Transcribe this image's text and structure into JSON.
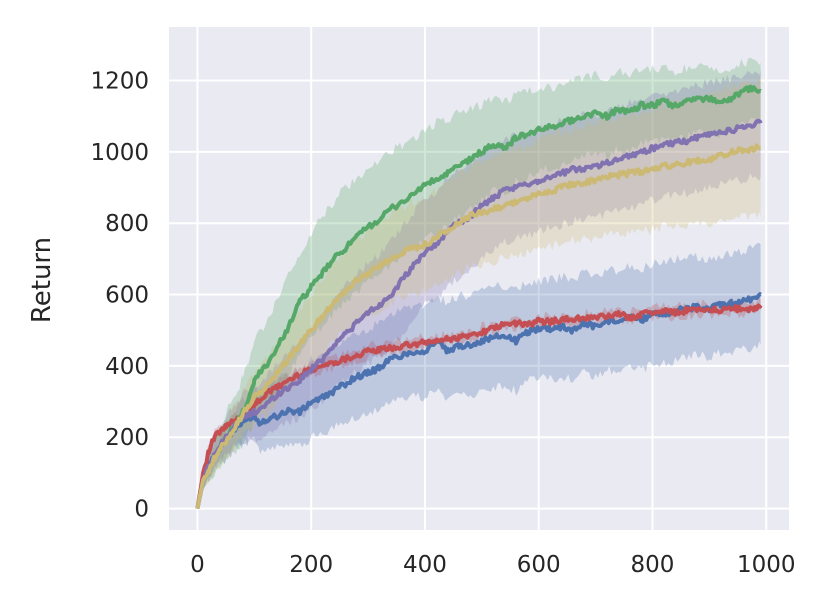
{
  "chart_data": {
    "type": "line",
    "title": "",
    "xlabel": "",
    "ylabel": "Return",
    "xlim": [
      -50,
      1040
    ],
    "ylim": [
      -60,
      1350
    ],
    "xticks": [
      0,
      200,
      400,
      600,
      800,
      1000
    ],
    "yticks": [
      0,
      200,
      400,
      600,
      800,
      1000,
      1200
    ],
    "grid": true,
    "background": "#eaeaf2",
    "series": [
      {
        "color": "#4c72b0",
        "x": [
          0,
          10,
          20,
          30,
          40,
          50,
          60,
          70,
          80,
          90,
          100,
          110,
          120,
          140,
          160,
          180,
          200,
          220,
          240,
          260,
          280,
          300,
          320,
          340,
          360,
          380,
          400,
          420,
          440,
          460,
          480,
          500,
          520,
          540,
          560,
          580,
          600,
          620,
          640,
          660,
          680,
          700,
          720,
          740,
          760,
          780,
          800,
          820,
          840,
          860,
          880,
          900,
          920,
          940,
          960,
          980,
          990
        ],
        "y": [
          0,
          80,
          120,
          150,
          170,
          190,
          210,
          230,
          240,
          255,
          260,
          240,
          250,
          260,
          275,
          270,
          300,
          310,
          330,
          350,
          370,
          380,
          395,
          420,
          430,
          440,
          440,
          470,
          440,
          455,
          460,
          470,
          480,
          485,
          470,
          495,
          505,
          505,
          510,
          500,
          520,
          510,
          525,
          530,
          540,
          525,
          550,
          545,
          555,
          560,
          565,
          560,
          570,
          575,
          580,
          590,
          600
        ],
        "upper": [
          0,
          110,
          160,
          190,
          215,
          240,
          265,
          285,
          300,
          320,
          330,
          330,
          345,
          360,
          375,
          385,
          420,
          430,
          450,
          470,
          490,
          500,
          520,
          540,
          555,
          565,
          570,
          590,
          580,
          595,
          600,
          610,
          620,
          625,
          620,
          630,
          640,
          640,
          650,
          640,
          660,
          655,
          665,
          670,
          680,
          670,
          690,
          690,
          700,
          700,
          705,
          700,
          710,
          715,
          720,
          730,
          740
        ],
        "lower": [
          0,
          50,
          85,
          110,
          125,
          140,
          155,
          170,
          180,
          190,
          190,
          160,
          165,
          170,
          185,
          175,
          200,
          210,
          225,
          240,
          260,
          270,
          280,
          300,
          310,
          315,
          310,
          340,
          300,
          315,
          320,
          330,
          340,
          345,
          330,
          355,
          365,
          365,
          370,
          360,
          380,
          370,
          385,
          390,
          400,
          385,
          410,
          405,
          415,
          425,
          430,
          425,
          435,
          440,
          445,
          455,
          460
        ]
      },
      {
        "color": "#c44e52",
        "x": [
          0,
          10,
          20,
          30,
          40,
          50,
          60,
          70,
          80,
          90,
          100,
          120,
          140,
          160,
          180,
          200,
          220,
          240,
          260,
          280,
          300,
          320,
          340,
          360,
          380,
          400,
          420,
          440,
          460,
          480,
          500,
          520,
          540,
          560,
          580,
          600,
          620,
          640,
          660,
          680,
          700,
          720,
          740,
          760,
          780,
          800,
          820,
          840,
          860,
          880,
          900,
          920,
          940,
          960,
          980,
          990
        ],
        "y": [
          0,
          100,
          160,
          200,
          215,
          230,
          240,
          250,
          260,
          275,
          290,
          320,
          340,
          360,
          375,
          390,
          400,
          410,
          420,
          430,
          440,
          445,
          450,
          455,
          460,
          465,
          470,
          475,
          480,
          485,
          495,
          505,
          515,
          520,
          515,
          525,
          525,
          530,
          530,
          535,
          535,
          540,
          545,
          535,
          545,
          550,
          555,
          550,
          555,
          560,
          560,
          555,
          565,
          555,
          560,
          570
        ],
        "upper": [
          0,
          110,
          175,
          215,
          230,
          245,
          255,
          265,
          275,
          290,
          305,
          335,
          355,
          375,
          390,
          405,
          415,
          425,
          435,
          445,
          455,
          460,
          465,
          470,
          475,
          480,
          485,
          490,
          495,
          500,
          510,
          520,
          530,
          535,
          530,
          540,
          540,
          545,
          545,
          550,
          550,
          555,
          560,
          550,
          560,
          565,
          570,
          565,
          570,
          575,
          575,
          570,
          580,
          570,
          575,
          585
        ],
        "lower": [
          0,
          90,
          145,
          185,
          200,
          215,
          225,
          235,
          245,
          260,
          275,
          305,
          325,
          345,
          360,
          375,
          385,
          395,
          405,
          415,
          425,
          430,
          435,
          440,
          445,
          450,
          455,
          460,
          465,
          470,
          480,
          490,
          500,
          505,
          500,
          510,
          510,
          515,
          515,
          520,
          520,
          525,
          530,
          520,
          530,
          535,
          540,
          535,
          540,
          545,
          545,
          540,
          550,
          540,
          545,
          555
        ]
      },
      {
        "color": "#55a868",
        "x": [
          0,
          10,
          20,
          30,
          40,
          50,
          60,
          70,
          80,
          90,
          100,
          120,
          140,
          160,
          180,
          200,
          220,
          240,
          260,
          280,
          300,
          320,
          340,
          360,
          380,
          400,
          420,
          440,
          460,
          480,
          500,
          520,
          540,
          560,
          580,
          600,
          620,
          640,
          660,
          680,
          700,
          720,
          740,
          760,
          780,
          800,
          820,
          840,
          860,
          880,
          900,
          920,
          940,
          960,
          980,
          990
        ],
        "y": [
          0,
          80,
          110,
          140,
          170,
          200,
          220,
          240,
          270,
          300,
          360,
          400,
          450,
          510,
          580,
          620,
          660,
          700,
          730,
          760,
          790,
          810,
          840,
          860,
          880,
          910,
          920,
          940,
          960,
          980,
          1000,
          1020,
          1010,
          1040,
          1050,
          1060,
          1070,
          1080,
          1090,
          1100,
          1110,
          1100,
          1120,
          1110,
          1130,
          1130,
          1140,
          1130,
          1140,
          1150,
          1150,
          1140,
          1150,
          1170,
          1180,
          1170
        ],
        "upper": [
          0,
          110,
          150,
          190,
          230,
          270,
          300,
          330,
          370,
          410,
          470,
          520,
          580,
          650,
          720,
          770,
          820,
          860,
          900,
          920,
          950,
          970,
          1000,
          1020,
          1040,
          1060,
          1080,
          1090,
          1110,
          1120,
          1130,
          1150,
          1140,
          1160,
          1170,
          1170,
          1180,
          1190,
          1200,
          1210,
          1215,
          1205,
          1225,
          1215,
          1230,
          1230,
          1235,
          1225,
          1235,
          1240,
          1240,
          1230,
          1240,
          1250,
          1255,
          1250
        ],
        "lower": [
          0,
          55,
          75,
          95,
          115,
          135,
          150,
          165,
          185,
          210,
          255,
          285,
          320,
          370,
          435,
          475,
          510,
          550,
          575,
          605,
          635,
          655,
          685,
          705,
          725,
          760,
          770,
          795,
          815,
          840,
          865,
          890,
          880,
          915,
          925,
          945,
          955,
          965,
          975,
          985,
          1000,
          990,
          1010,
          1000,
          1025,
          1025,
          1040,
          1030,
          1040,
          1055,
          1055,
          1045,
          1055,
          1080,
          1095,
          1085
        ]
      },
      {
        "color": "#8172b2",
        "x": [
          0,
          10,
          20,
          30,
          40,
          50,
          60,
          70,
          80,
          90,
          100,
          120,
          140,
          160,
          180,
          200,
          220,
          240,
          260,
          280,
          300,
          320,
          340,
          360,
          380,
          400,
          420,
          440,
          460,
          480,
          500,
          520,
          540,
          560,
          580,
          600,
          620,
          640,
          660,
          680,
          700,
          720,
          740,
          760,
          780,
          800,
          820,
          840,
          860,
          880,
          900,
          920,
          940,
          960,
          980,
          990
        ],
        "y": [
          0,
          80,
          120,
          150,
          175,
          200,
          220,
          240,
          255,
          265,
          270,
          290,
          320,
          340,
          360,
          390,
          420,
          460,
          490,
          520,
          550,
          570,
          600,
          640,
          680,
          720,
          740,
          780,
          800,
          820,
          850,
          870,
          890,
          900,
          910,
          920,
          930,
          940,
          950,
          955,
          960,
          970,
          980,
          990,
          1000,
          1010,
          1020,
          1025,
          1030,
          1040,
          1050,
          1055,
          1060,
          1070,
          1080,
          1080
        ],
        "upper": [
          0,
          105,
          155,
          190,
          220,
          250,
          275,
          300,
          320,
          335,
          345,
          370,
          405,
          435,
          465,
          500,
          540,
          585,
          620,
          655,
          690,
          715,
          750,
          790,
          830,
          870,
          890,
          930,
          950,
          970,
          1000,
          1015,
          1035,
          1045,
          1055,
          1065,
          1075,
          1085,
          1095,
          1100,
          1105,
          1115,
          1125,
          1135,
          1145,
          1155,
          1165,
          1170,
          1175,
          1185,
          1195,
          1200,
          1205,
          1215,
          1225,
          1230
        ],
        "lower": [
          0,
          55,
          85,
          110,
          130,
          150,
          165,
          180,
          190,
          195,
          195,
          210,
          235,
          245,
          255,
          280,
          300,
          335,
          360,
          385,
          410,
          425,
          450,
          490,
          530,
          570,
          590,
          630,
          650,
          670,
          700,
          725,
          745,
          755,
          765,
          775,
          785,
          795,
          805,
          810,
          815,
          825,
          835,
          845,
          855,
          865,
          875,
          880,
          885,
          895,
          905,
          910,
          915,
          925,
          935,
          930
        ]
      },
      {
        "color": "#ccb974",
        "x": [
          0,
          10,
          20,
          30,
          40,
          50,
          60,
          70,
          80,
          90,
          100,
          120,
          140,
          160,
          180,
          200,
          220,
          240,
          260,
          280,
          300,
          320,
          340,
          360,
          380,
          400,
          420,
          440,
          460,
          480,
          500,
          520,
          540,
          560,
          580,
          600,
          620,
          640,
          660,
          680,
          700,
          720,
          740,
          760,
          780,
          800,
          820,
          840,
          860,
          880,
          900,
          920,
          940,
          960,
          980,
          990
        ],
        "y": [
          0,
          80,
          110,
          140,
          165,
          190,
          215,
          240,
          265,
          290,
          310,
          340,
          380,
          420,
          460,
          500,
          540,
          580,
          610,
          640,
          660,
          680,
          700,
          720,
          730,
          740,
          760,
          780,
          800,
          820,
          830,
          840,
          850,
          860,
          870,
          880,
          890,
          900,
          910,
          915,
          920,
          930,
          935,
          940,
          945,
          950,
          960,
          965,
          970,
          975,
          980,
          990,
          1000,
          1005,
          1010,
          1010
        ],
        "upper": [
          0,
          100,
          140,
          180,
          210,
          240,
          270,
          300,
          330,
          360,
          385,
          420,
          465,
          510,
          555,
          600,
          645,
          690,
          720,
          755,
          780,
          800,
          825,
          845,
          860,
          870,
          895,
          915,
          940,
          960,
          975,
          985,
          1000,
          1010,
          1020,
          1035,
          1045,
          1055,
          1065,
          1075,
          1080,
          1090,
          1100,
          1105,
          1110,
          1120,
          1130,
          1140,
          1145,
          1150,
          1160,
          1170,
          1180,
          1190,
          1195,
          1200
        ],
        "lower": [
          0,
          60,
          80,
          100,
          120,
          140,
          160,
          180,
          200,
          220,
          235,
          260,
          295,
          330,
          365,
          400,
          435,
          470,
          500,
          525,
          540,
          560,
          575,
          595,
          600,
          610,
          625,
          645,
          660,
          680,
          685,
          695,
          700,
          710,
          720,
          725,
          735,
          745,
          755,
          755,
          760,
          770,
          770,
          775,
          780,
          780,
          790,
          790,
          795,
          800,
          800,
          810,
          820,
          820,
          825,
          820
        ]
      }
    ]
  }
}
